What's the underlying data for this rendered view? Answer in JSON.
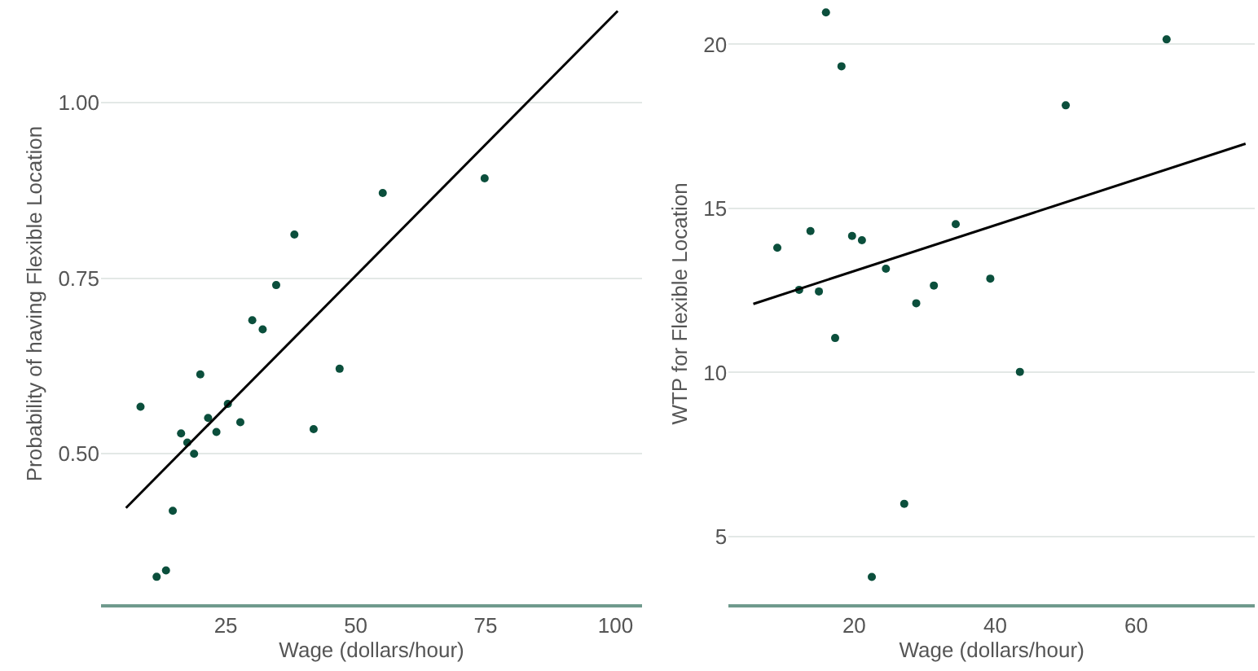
{
  "chart_data": [
    {
      "type": "scatter",
      "xlabel": "Wage (dollars/hour)",
      "ylabel": "Probability of having Flexible Location",
      "xlim": [
        1.0,
        105.1
      ],
      "ylim": [
        0.286,
        1.141
      ],
      "xticks": [
        25,
        50,
        75,
        100
      ],
      "yticks": [
        {
          "value": 0.5,
          "label": "0.50"
        },
        {
          "value": 0.75,
          "label": "0.75"
        },
        {
          "value": 1.0,
          "label": "1.00"
        }
      ],
      "grid": "y",
      "series": [
        {
          "marker": "circle",
          "color": "#0b4f3c",
          "x": [
            8.6,
            11.7,
            13.5,
            14.8,
            16.4,
            17.6,
            18.9,
            20.1,
            21.6,
            23.2,
            25.4,
            27.8,
            30.1,
            32.1,
            34.7,
            38.2,
            41.9,
            46.9,
            55.2,
            74.8
          ],
          "values": [
            0.567,
            0.325,
            0.334,
            0.419,
            0.529,
            0.516,
            0.5,
            0.613,
            0.551,
            0.531,
            0.571,
            0.545,
            0.69,
            0.677,
            0.74,
            0.812,
            0.535,
            0.621,
            0.871,
            0.892
          ]
        },
        {
          "type": "line",
          "color": "#000000",
          "x": [
            5.8,
            100.4
          ],
          "values": [
            0.423,
            1.13
          ]
        }
      ]
    },
    {
      "type": "scatter",
      "xlabel": "Wage (dollars/hour)",
      "ylabel": "WTP for Flexible Location",
      "xlim": [
        2.2,
        76.8
      ],
      "ylim": [
        2.94,
        21.25
      ],
      "xticks": [
        20,
        40,
        60
      ],
      "yticks": [
        5,
        10,
        15,
        20
      ],
      "grid": "y",
      "series": [
        {
          "marker": "circle",
          "color": "#0b4f3c",
          "x": [
            9.1,
            12.2,
            13.8,
            15.0,
            16.0,
            17.3,
            18.2,
            19.7,
            21.1,
            22.5,
            24.5,
            27.1,
            28.8,
            31.3,
            34.4,
            39.3,
            43.5,
            50.0,
            64.3
          ],
          "values": [
            13.8,
            12.52,
            14.31,
            12.47,
            20.97,
            11.05,
            19.33,
            14.16,
            14.03,
            3.77,
            13.16,
            6.0,
            12.11,
            12.65,
            14.52,
            12.86,
            10.02,
            18.14,
            20.15
          ]
        },
        {
          "type": "line",
          "color": "#000000",
          "x": [
            5.7,
            75.5
          ],
          "values": [
            12.09,
            16.97
          ]
        }
      ]
    }
  ]
}
